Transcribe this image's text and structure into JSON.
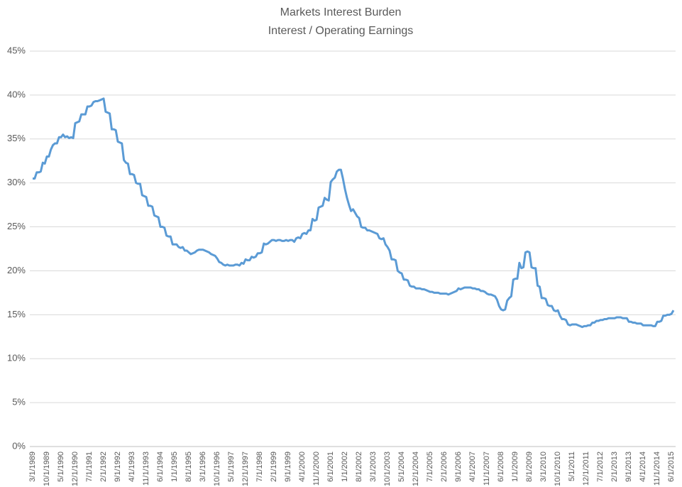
{
  "chart_data": {
    "type": "line",
    "title": "Markets Interest Burden",
    "subtitle": "Interest / Operating Earnings",
    "color": "#5b9bd5",
    "grid": true,
    "ylim": [
      0,
      45
    ],
    "yticks": [
      {
        "value": 0,
        "label": "0%"
      },
      {
        "value": 5,
        "label": "5%"
      },
      {
        "value": 10,
        "label": "10%"
      },
      {
        "value": 15,
        "label": "15%"
      },
      {
        "value": 20,
        "label": "20%"
      },
      {
        "value": 25,
        "label": "25%"
      },
      {
        "value": 30,
        "label": "30%"
      },
      {
        "value": 35,
        "label": "35%"
      },
      {
        "value": 40,
        "label": "40%"
      },
      {
        "value": 45,
        "label": "45%"
      }
    ],
    "categories": [
      "3/1/1989",
      null,
      null,
      null,
      null,
      null,
      null,
      "10/1/1989",
      null,
      null,
      null,
      null,
      null,
      null,
      "5/1/1990",
      null,
      null,
      null,
      null,
      null,
      null,
      "12/1/1990",
      null,
      null,
      null,
      null,
      null,
      null,
      "7/1/1991",
      null,
      null,
      null,
      null,
      null,
      null,
      "2/1/1992",
      null,
      null,
      null,
      null,
      null,
      null,
      "9/1/1992",
      null,
      null,
      null,
      null,
      null,
      null,
      "4/1/1993",
      null,
      null,
      null,
      null,
      null,
      null,
      "11/1/1993",
      null,
      null,
      null,
      null,
      null,
      null,
      "6/1/1994",
      null,
      null,
      null,
      null,
      null,
      null,
      "1/1/1995",
      null,
      null,
      null,
      null,
      null,
      null,
      "8/1/1995",
      null,
      null,
      null,
      null,
      null,
      null,
      "3/1/1996",
      null,
      null,
      null,
      null,
      null,
      null,
      "10/1/1996",
      null,
      null,
      null,
      null,
      null,
      null,
      "5/1/1997",
      null,
      null,
      null,
      null,
      null,
      null,
      "12/1/1997",
      null,
      null,
      null,
      null,
      null,
      null,
      "7/1/1998",
      null,
      null,
      null,
      null,
      null,
      null,
      "2/1/1999",
      null,
      null,
      null,
      null,
      null,
      null,
      "9/1/1999",
      null,
      null,
      null,
      null,
      null,
      null,
      "4/1/2000",
      null,
      null,
      null,
      null,
      null,
      null,
      "11/1/2000",
      null,
      null,
      null,
      null,
      null,
      null,
      "6/1/2001",
      null,
      null,
      null,
      null,
      null,
      null,
      "1/1/2002",
      null,
      null,
      null,
      null,
      null,
      null,
      "8/1/2002",
      null,
      null,
      null,
      null,
      null,
      null,
      "3/1/2003",
      null,
      null,
      null,
      null,
      null,
      null,
      "10/1/2003",
      null,
      null,
      null,
      null,
      null,
      null,
      "5/1/2004",
      null,
      null,
      null,
      null,
      null,
      null,
      "12/1/2004",
      null,
      null,
      null,
      null,
      null,
      null,
      "7/1/2005",
      null,
      null,
      null,
      null,
      null,
      null,
      "2/1/2006",
      null,
      null,
      null,
      null,
      null,
      null,
      "9/1/2006",
      null,
      null,
      null,
      null,
      null,
      null,
      "4/1/2007",
      null,
      null,
      null,
      null,
      null,
      null,
      "11/1/2007",
      null,
      null,
      null,
      null,
      null,
      null,
      "6/1/2008",
      null,
      null,
      null,
      null,
      null,
      null,
      "1/1/2009",
      null,
      null,
      null,
      null,
      null,
      null,
      "8/1/2009",
      null,
      null,
      null,
      null,
      null,
      null,
      "3/1/2010",
      null,
      null,
      null,
      null,
      null,
      null,
      "10/1/2010",
      null,
      null,
      null,
      null,
      null,
      null,
      "5/1/2011",
      null,
      null,
      null,
      null,
      null,
      null,
      "12/1/2011",
      null,
      null,
      null,
      null,
      null,
      null,
      "7/1/2012",
      null,
      null,
      null,
      null,
      null,
      null,
      "2/1/2013",
      null,
      null,
      null,
      null,
      null,
      null,
      "9/1/2013",
      null,
      null,
      null,
      null,
      null,
      null,
      "4/1/2014",
      null,
      null,
      null,
      null,
      null,
      null,
      "11/1/2014",
      null,
      null,
      null,
      null,
      null,
      null,
      "6/1/2015",
      null
    ],
    "values": [
      30.5,
      30.5,
      31.2,
      31.2,
      31.3,
      32.3,
      32.2,
      33.0,
      33.0,
      33.8,
      34.3,
      34.5,
      34.5,
      35.2,
      35.2,
      35.5,
      35.2,
      35.3,
      35.1,
      35.2,
      35.1,
      36.8,
      36.9,
      37.0,
      37.8,
      37.8,
      37.8,
      38.7,
      38.7,
      38.8,
      39.2,
      39.3,
      39.3,
      39.4,
      39.5,
      39.6,
      38.1,
      38.0,
      37.9,
      36.1,
      36.1,
      36.0,
      34.7,
      34.6,
      34.5,
      32.6,
      32.3,
      32.2,
      31.0,
      31.0,
      30.9,
      30.0,
      29.9,
      29.9,
      28.6,
      28.5,
      28.4,
      27.4,
      27.4,
      27.3,
      26.3,
      26.2,
      26.1,
      25.0,
      25.0,
      24.9,
      24.0,
      23.9,
      23.9,
      23.0,
      23.0,
      23.0,
      22.7,
      22.6,
      22.7,
      22.3,
      22.3,
      22.1,
      21.9,
      22.0,
      22.1,
      22.3,
      22.4,
      22.4,
      22.4,
      22.3,
      22.2,
      22.1,
      21.9,
      21.8,
      21.7,
      21.4,
      21.0,
      20.9,
      20.7,
      20.6,
      20.7,
      20.6,
      20.6,
      20.6,
      20.7,
      20.7,
      20.6,
      20.9,
      20.8,
      21.3,
      21.2,
      21.2,
      21.6,
      21.5,
      21.6,
      22.0,
      22.0,
      22.1,
      23.1,
      23.0,
      23.1,
      23.3,
      23.5,
      23.5,
      23.4,
      23.5,
      23.5,
      23.4,
      23.4,
      23.5,
      23.4,
      23.5,
      23.5,
      23.3,
      23.7,
      23.8,
      23.7,
      24.2,
      24.3,
      24.2,
      24.6,
      24.6,
      25.9,
      25.7,
      25.8,
      27.2,
      27.3,
      27.4,
      28.3,
      28.1,
      28.0,
      30.1,
      30.4,
      30.6,
      31.3,
      31.5,
      31.5,
      30.5,
      29.3,
      28.3,
      27.5,
      26.8,
      27.0,
      26.6,
      26.2,
      26.0,
      25.0,
      24.9,
      24.9,
      24.6,
      24.6,
      24.5,
      24.4,
      24.3,
      24.2,
      23.7,
      23.6,
      23.7,
      23.0,
      22.7,
      22.3,
      21.3,
      21.3,
      21.2,
      20.0,
      19.8,
      19.7,
      19.0,
      19.0,
      18.9,
      18.3,
      18.2,
      18.2,
      18.0,
      18.0,
      18.0,
      17.9,
      17.9,
      17.8,
      17.7,
      17.6,
      17.6,
      17.5,
      17.5,
      17.5,
      17.4,
      17.4,
      17.4,
      17.4,
      17.3,
      17.4,
      17.5,
      17.6,
      17.7,
      18.0,
      17.9,
      18.0,
      18.1,
      18.1,
      18.1,
      18.1,
      18.0,
      18.0,
      17.9,
      17.9,
      17.7,
      17.7,
      17.6,
      17.4,
      17.3,
      17.3,
      17.2,
      17.1,
      16.7,
      16.0,
      15.6,
      15.5,
      15.6,
      16.6,
      16.9,
      17.1,
      19.0,
      19.1,
      19.1,
      20.9,
      20.3,
      20.4,
      22.1,
      22.2,
      22.1,
      20.4,
      20.3,
      20.3,
      18.3,
      18.2,
      16.9,
      16.9,
      16.8,
      16.1,
      16.0,
      16.0,
      15.5,
      15.4,
      15.5,
      14.9,
      14.5,
      14.5,
      14.4,
      13.9,
      13.8,
      13.9,
      13.9,
      13.9,
      13.8,
      13.7,
      13.6,
      13.7,
      13.7,
      13.8,
      13.8,
      14.1,
      14.1,
      14.3,
      14.3,
      14.4,
      14.4,
      14.5,
      14.5,
      14.6,
      14.6,
      14.6,
      14.6,
      14.7,
      14.7,
      14.7,
      14.6,
      14.6,
      14.6,
      14.2,
      14.2,
      14.1,
      14.1,
      14.0,
      14.0,
      14.0,
      13.8,
      13.8,
      13.8,
      13.8,
      13.8,
      13.7,
      13.7,
      14.2,
      14.2,
      14.3,
      14.9,
      14.9,
      15.0,
      15.0,
      15.1,
      15.5
    ]
  }
}
